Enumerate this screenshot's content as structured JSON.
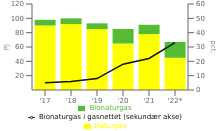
{
  "chart_data": {
    "type": "bar",
    "stacked": true,
    "categories": [
      "'17",
      "'18",
      "'19",
      "'20",
      "'21",
      "'22*"
    ],
    "series": [
      {
        "name": "Naturgas",
        "color": "#ffff00",
        "values": [
          90,
          92,
          85,
          65,
          78,
          45
        ]
      },
      {
        "name": "Bionaturgas",
        "color": "#55bb33",
        "values": [
          8,
          8,
          8,
          20,
          13,
          22
        ]
      },
      {
        "name": "Bionaturgas i gasnettet (sekundær akse)",
        "type": "line",
        "axis": "y2",
        "color": "#111111",
        "values": [
          5,
          6,
          8,
          18,
          22,
          33
        ]
      }
    ],
    "ylabel": "PJ",
    "y2label": "pct.",
    "ylim": [
      0,
      120
    ],
    "yticks": [
      20,
      40,
      60,
      80,
      100,
      120
    ],
    "y2lim": [
      0,
      60
    ],
    "y2ticks": [
      0,
      10,
      20,
      30,
      40,
      50,
      60
    ],
    "legend": "bottom",
    "grid": false
  }
}
